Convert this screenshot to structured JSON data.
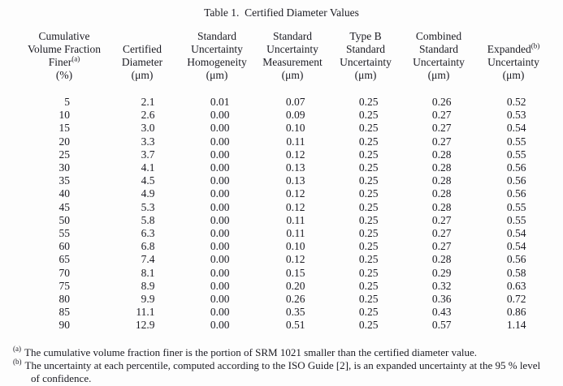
{
  "title": "Table 1.  Certified Diameter Values",
  "table": {
    "columns": [
      {
        "id": "cumulative-volume-fraction-finer",
        "lines": [
          "Cumulative",
          "Volume Fraction",
          {
            "t": "Finer",
            "sup": "(a)"
          },
          "(%)"
        ]
      },
      {
        "id": "certified-diameter",
        "lines": [
          "Certified",
          "Diameter",
          "(μm)"
        ]
      },
      {
        "id": "standard-uncertainty-homogeneity",
        "lines": [
          "Standard",
          "Uncertainty",
          "Homogeneity",
          "(μm)"
        ]
      },
      {
        "id": "standard-uncertainty-measurement",
        "lines": [
          "Standard",
          "Uncertainty",
          "Measurement",
          "(μm)"
        ]
      },
      {
        "id": "type-b-standard-uncertainty",
        "lines": [
          "Type B",
          "Standard",
          "Uncertainty",
          "(μm)"
        ]
      },
      {
        "id": "combined-standard-uncertainty",
        "lines": [
          "Combined",
          "Standard",
          "Uncertainty",
          "(μm)"
        ]
      },
      {
        "id": "expanded-uncertainty",
        "lines": [
          {
            "t": "Expanded",
            "sup": "(b)"
          },
          "Uncertainty",
          "(μm)"
        ]
      }
    ],
    "rows": [
      [
        "5",
        "2.1",
        "0.01",
        "0.07",
        "0.25",
        "0.26",
        "0.52"
      ],
      [
        "10",
        "2.6",
        "0.00",
        "0.09",
        "0.25",
        "0.27",
        "0.53"
      ],
      [
        "15",
        "3.0",
        "0.00",
        "0.10",
        "0.25",
        "0.27",
        "0.54"
      ],
      [
        "20",
        "3.3",
        "0.00",
        "0.11",
        "0.25",
        "0.27",
        "0.55"
      ],
      [
        "25",
        "3.7",
        "0.00",
        "0.12",
        "0.25",
        "0.28",
        "0.55"
      ],
      [
        "30",
        "4.1",
        "0.00",
        "0.13",
        "0.25",
        "0.28",
        "0.56"
      ],
      [
        "35",
        "4.5",
        "0.00",
        "0.13",
        "0.25",
        "0.28",
        "0.56"
      ],
      [
        "40",
        "4.9",
        "0.00",
        "0.12",
        "0.25",
        "0.28",
        "0.56"
      ],
      [
        "45",
        "5.3",
        "0.00",
        "0.12",
        "0.25",
        "0.28",
        "0.55"
      ],
      [
        "50",
        "5.8",
        "0.00",
        "0.11",
        "0.25",
        "0.27",
        "0.55"
      ],
      [
        "55",
        "6.3",
        "0.00",
        "0.11",
        "0.25",
        "0.27",
        "0.54"
      ],
      [
        "60",
        "6.8",
        "0.00",
        "0.10",
        "0.25",
        "0.27",
        "0.54"
      ],
      [
        "65",
        "7.4",
        "0.00",
        "0.12",
        "0.25",
        "0.28",
        "0.56"
      ],
      [
        "70",
        "8.1",
        "0.00",
        "0.15",
        "0.25",
        "0.29",
        "0.58"
      ],
      [
        "75",
        "8.9",
        "0.00",
        "0.20",
        "0.25",
        "0.32",
        "0.63"
      ],
      [
        "80",
        "9.9",
        "0.00",
        "0.26",
        "0.25",
        "0.36",
        "0.72"
      ],
      [
        "85",
        "11.1",
        "0.00",
        "0.35",
        "0.25",
        "0.43",
        "0.86"
      ],
      [
        "90",
        "12.9",
        "0.00",
        "0.51",
        "0.25",
        "0.57",
        "1.14"
      ]
    ]
  },
  "footnotes": [
    {
      "marker": "(a)",
      "text": "The cumulative volume fraction finer is the portion of SRM 1021 smaller than the certified diameter value."
    },
    {
      "marker": "(b)",
      "text": "The uncertainty at each percentile, computed according to the ISO Guide [2], is an expanded uncertainty at the 95 % level of confidence."
    }
  ]
}
